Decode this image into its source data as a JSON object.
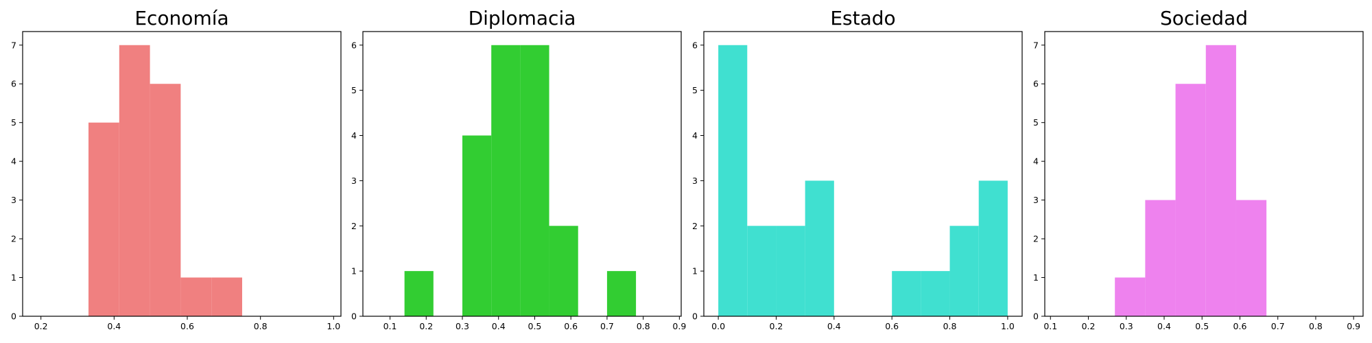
{
  "chart_data": [
    {
      "type": "bar",
      "title": "Economía",
      "color": "#f08080",
      "xlim": [
        0.15,
        1.02
      ],
      "ylim": [
        0,
        7.35
      ],
      "xticks": [
        0.2,
        0.4,
        0.6,
        0.8,
        1.0
      ],
      "xtick_labels": [
        "0.2",
        "0.4",
        "0.6",
        "0.8",
        "1.0"
      ],
      "yticks": [
        0,
        1,
        2,
        3,
        4,
        5,
        6,
        7
      ],
      "bins": [
        {
          "x0": 0.33,
          "x1": 0.414,
          "count": 5
        },
        {
          "x0": 0.414,
          "x1": 0.498,
          "count": 7
        },
        {
          "x0": 0.498,
          "x1": 0.582,
          "count": 6
        },
        {
          "x0": 0.582,
          "x1": 0.666,
          "count": 1
        },
        {
          "x0": 0.666,
          "x1": 0.75,
          "count": 1
        }
      ]
    },
    {
      "type": "bar",
      "title": "Diplomacia",
      "color": "#32cd32",
      "xlim": [
        0.025,
        0.905
      ],
      "ylim": [
        0,
        6.3
      ],
      "xticks": [
        0.1,
        0.2,
        0.3,
        0.4,
        0.5,
        0.6,
        0.7,
        0.8,
        0.9
      ],
      "xtick_labels": [
        "0.1",
        "0.2",
        "0.3",
        "0.4",
        "0.5",
        "0.6",
        "0.7",
        "0.8",
        "0.9"
      ],
      "yticks": [
        0,
        1,
        2,
        3,
        4,
        5,
        6
      ],
      "bins": [
        {
          "x0": 0.14,
          "x1": 0.22,
          "count": 1
        },
        {
          "x0": 0.3,
          "x1": 0.38,
          "count": 4
        },
        {
          "x0": 0.38,
          "x1": 0.46,
          "count": 6
        },
        {
          "x0": 0.46,
          "x1": 0.54,
          "count": 6
        },
        {
          "x0": 0.54,
          "x1": 0.62,
          "count": 2
        },
        {
          "x0": 0.7,
          "x1": 0.78,
          "count": 1
        }
      ]
    },
    {
      "type": "bar",
      "title": "Estado",
      "color": "#40e0d0",
      "xlim": [
        -0.05,
        1.05
      ],
      "ylim": [
        0,
        6.3
      ],
      "xticks": [
        0.0,
        0.2,
        0.4,
        0.6,
        0.8,
        1.0
      ],
      "xtick_labels": [
        "0.0",
        "0.2",
        "0.4",
        "0.6",
        "0.8",
        "1.0"
      ],
      "yticks": [
        0,
        1,
        2,
        3,
        4,
        5,
        6
      ],
      "bins": [
        {
          "x0": 0.0,
          "x1": 0.1,
          "count": 6
        },
        {
          "x0": 0.1,
          "x1": 0.2,
          "count": 2
        },
        {
          "x0": 0.2,
          "x1": 0.3,
          "count": 2
        },
        {
          "x0": 0.3,
          "x1": 0.4,
          "count": 3
        },
        {
          "x0": 0.6,
          "x1": 0.7,
          "count": 1
        },
        {
          "x0": 0.7,
          "x1": 0.8,
          "count": 1
        },
        {
          "x0": 0.8,
          "x1": 0.9,
          "count": 2
        },
        {
          "x0": 0.9,
          "x1": 1.0,
          "count": 3
        }
      ]
    },
    {
      "type": "bar",
      "title": "Sociedad",
      "color": "#ee82ee",
      "xlim": [
        0.085,
        0.925
      ],
      "ylim": [
        0,
        7.35
      ],
      "xticks": [
        0.1,
        0.2,
        0.3,
        0.4,
        0.5,
        0.6,
        0.7,
        0.8,
        0.9
      ],
      "xtick_labels": [
        "0.1",
        "0.2",
        "0.3",
        "0.4",
        "0.5",
        "0.6",
        "0.7",
        "0.8",
        "0.9"
      ],
      "yticks": [
        0,
        1,
        2,
        3,
        4,
        5,
        6,
        7
      ],
      "bins": [
        {
          "x0": 0.27,
          "x1": 0.35,
          "count": 1
        },
        {
          "x0": 0.35,
          "x1": 0.43,
          "count": 3
        },
        {
          "x0": 0.43,
          "x1": 0.51,
          "count": 6
        },
        {
          "x0": 0.51,
          "x1": 0.59,
          "count": 7
        },
        {
          "x0": 0.59,
          "x1": 0.67,
          "count": 3
        }
      ]
    }
  ]
}
